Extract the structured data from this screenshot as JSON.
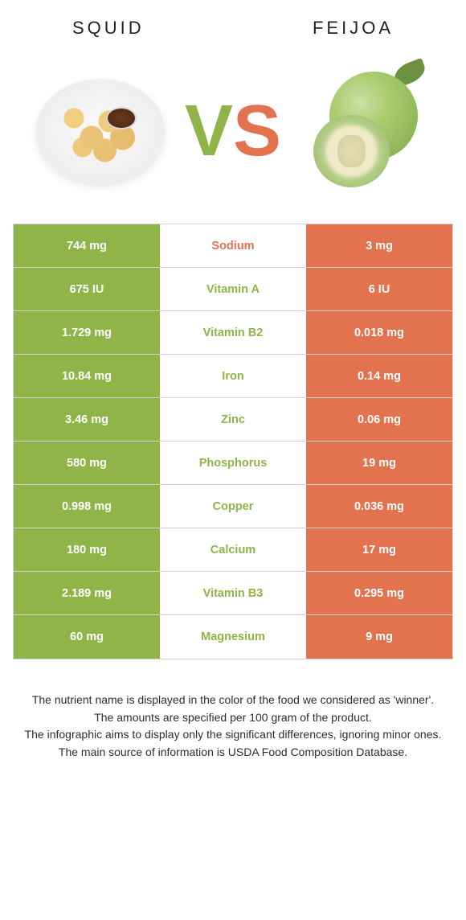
{
  "titles": {
    "left": "Squid",
    "right": "Feijoa"
  },
  "vs": {
    "v": "V",
    "s": "S"
  },
  "colors": {
    "green": "#8fb548",
    "orange": "#e2734e",
    "mid_border": "#d3d3d3"
  },
  "nutrients": [
    {
      "name": "Sodium",
      "left": "744 mg",
      "right": "3 mg",
      "winner_color": "#e2734e",
      "left_bg": "#8fb548",
      "right_bg": "#e2734e"
    },
    {
      "name": "Vitamin A",
      "left": "675 IU",
      "right": "6 IU",
      "winner_color": "#8fb548",
      "left_bg": "#8fb548",
      "right_bg": "#e2734e"
    },
    {
      "name": "Vitamin B2",
      "left": "1.729 mg",
      "right": "0.018 mg",
      "winner_color": "#8fb548",
      "left_bg": "#8fb548",
      "right_bg": "#e2734e"
    },
    {
      "name": "Iron",
      "left": "10.84 mg",
      "right": "0.14 mg",
      "winner_color": "#8fb548",
      "left_bg": "#8fb548",
      "right_bg": "#e2734e"
    },
    {
      "name": "Zinc",
      "left": "3.46 mg",
      "right": "0.06 mg",
      "winner_color": "#8fb548",
      "left_bg": "#8fb548",
      "right_bg": "#e2734e"
    },
    {
      "name": "Phosphorus",
      "left": "580 mg",
      "right": "19 mg",
      "winner_color": "#8fb548",
      "left_bg": "#8fb548",
      "right_bg": "#e2734e"
    },
    {
      "name": "Copper",
      "left": "0.998 mg",
      "right": "0.036 mg",
      "winner_color": "#8fb548",
      "left_bg": "#8fb548",
      "right_bg": "#e2734e"
    },
    {
      "name": "Calcium",
      "left": "180 mg",
      "right": "17 mg",
      "winner_color": "#8fb548",
      "left_bg": "#8fb548",
      "right_bg": "#e2734e"
    },
    {
      "name": "Vitamin B3",
      "left": "2.189 mg",
      "right": "0.295 mg",
      "winner_color": "#8fb548",
      "left_bg": "#8fb548",
      "right_bg": "#e2734e"
    },
    {
      "name": "Magnesium",
      "left": "60 mg",
      "right": "9 mg",
      "winner_color": "#8fb548",
      "left_bg": "#8fb548",
      "right_bg": "#e2734e"
    }
  ],
  "footer": {
    "line1": "The nutrient name is displayed in the color of the food we considered as 'winner'.",
    "line2": "The amounts are specified per 100 gram of the product.",
    "line3": "The infographic aims to display only the significant differences, ignoring minor ones.",
    "line4": "The main source of information is USDA Food Composition Database."
  }
}
